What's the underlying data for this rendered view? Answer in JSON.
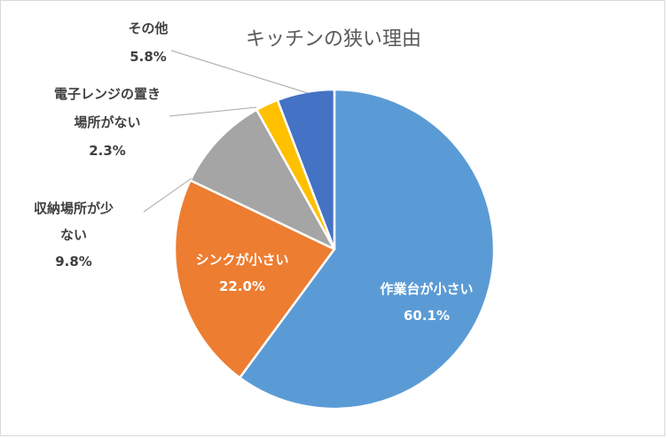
{
  "chart_data": {
    "type": "pie",
    "title": "キッチンの狭い理由",
    "start_angle_deg": 0,
    "direction": "clockwise",
    "slices": [
      {
        "label_lines": [
          "作業台が小さい"
        ],
        "label": "作業台が小さい",
        "value": 60.1,
        "value_text": "60.1%",
        "color": "#5B9BD5",
        "label_style": "inside"
      },
      {
        "label_lines": [
          "シンクが小さい"
        ],
        "label": "シンクが小さい",
        "value": 22.0,
        "value_text": "22.0%",
        "color": "#ED7D31",
        "label_style": "inside"
      },
      {
        "label_lines": [
          "収納場所が少",
          "ない"
        ],
        "label": "収納場所が少ない",
        "value": 9.8,
        "value_text": "9.8%",
        "color": "#A5A5A5",
        "label_style": "outside"
      },
      {
        "label_lines": [
          "電子レンジの置き",
          "場所がない"
        ],
        "label": "電子レンジの置き場所がない",
        "value": 2.3,
        "value_text": "2.3%",
        "color": "#FFC000",
        "label_style": "outside"
      },
      {
        "label_lines": [
          "その他"
        ],
        "label": "その他",
        "value": 5.8,
        "value_text": "5.8%",
        "color": "#4472C4",
        "label_style": "outside"
      }
    ],
    "legend": "none"
  }
}
